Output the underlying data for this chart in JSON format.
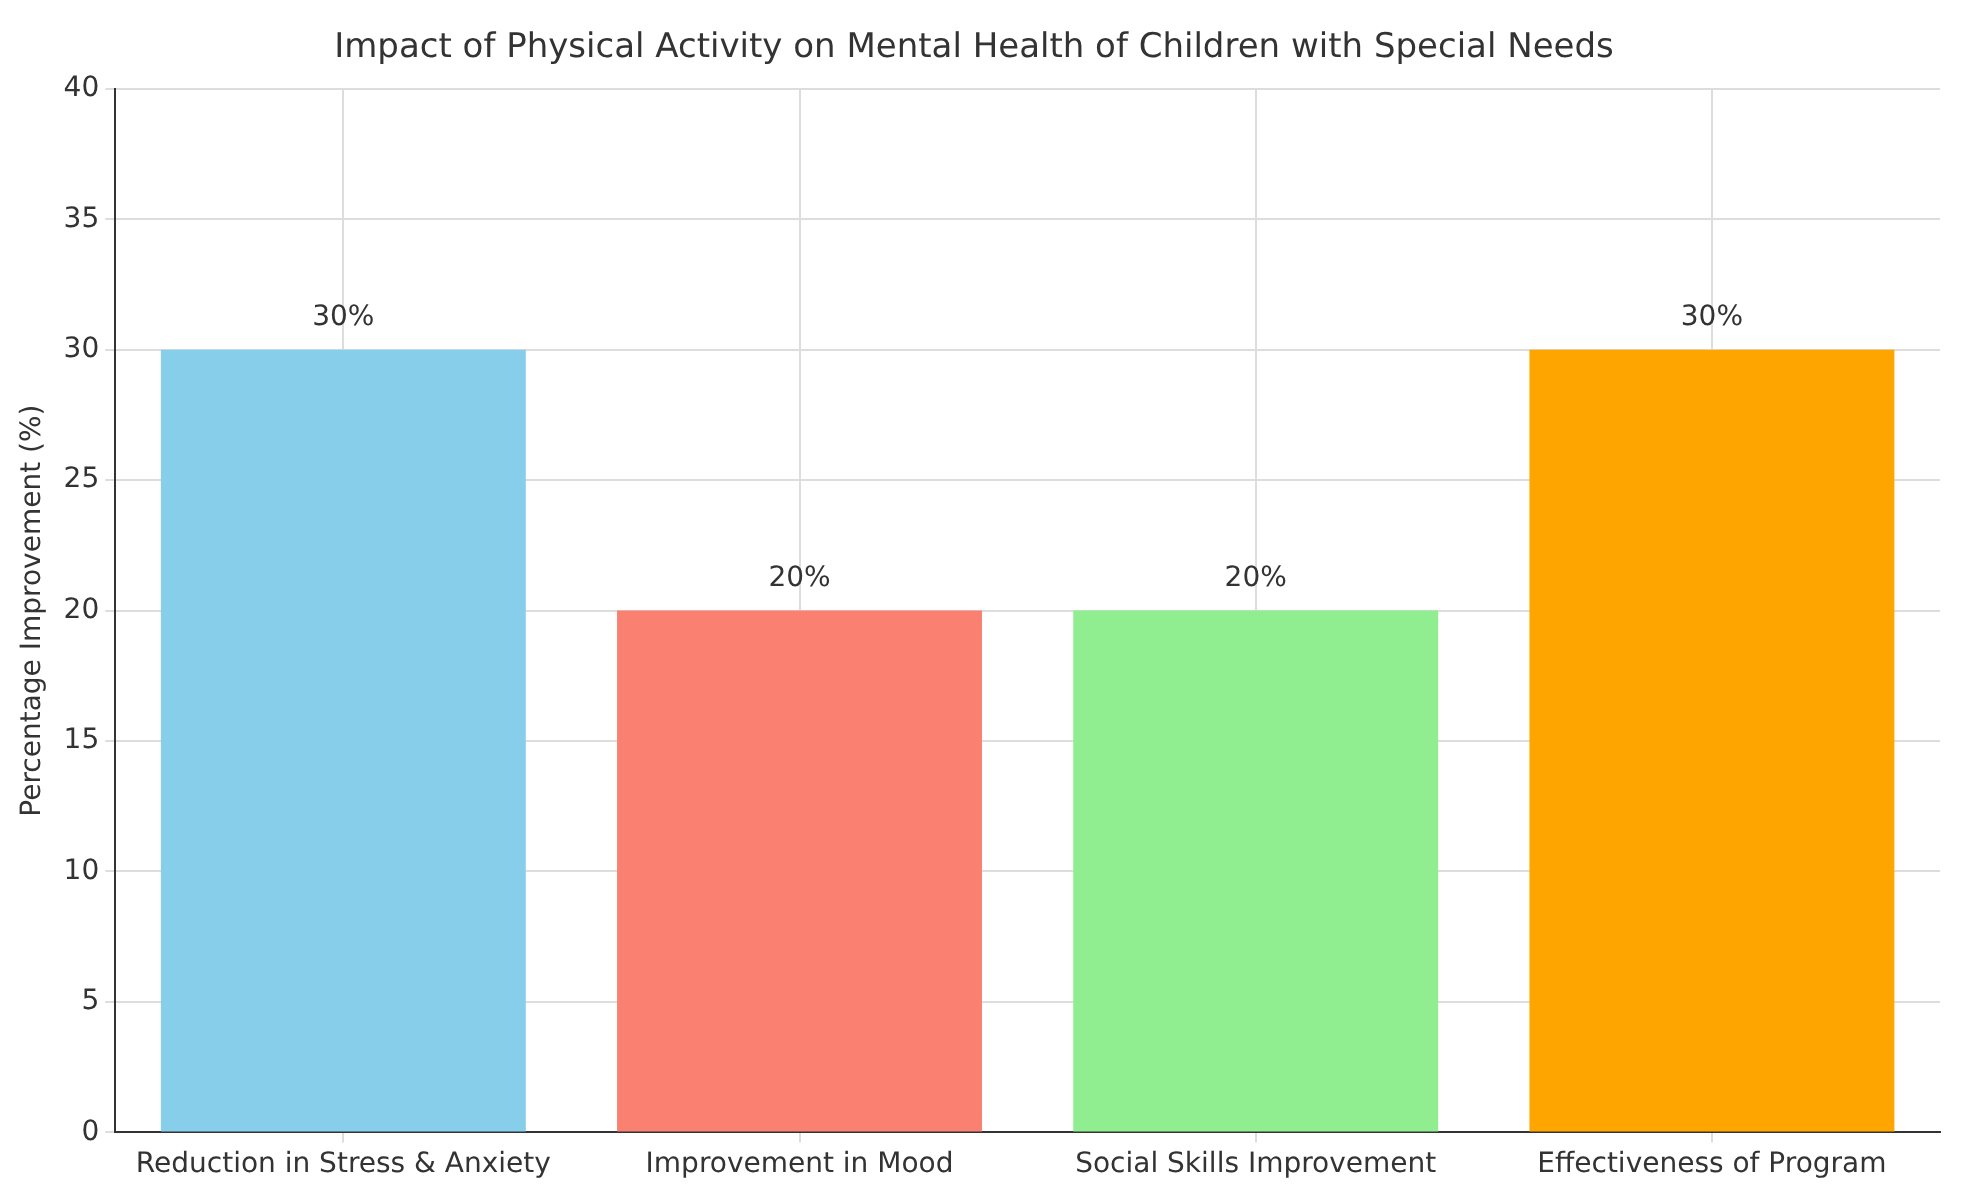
{
  "chart_data": {
    "type": "bar",
    "title": "Impact of Physical Activity on Mental Health of Children with Special Needs",
    "ylabel": "Percentage Improvement (%)",
    "categories": [
      "Reduction in Stress & Anxiety",
      "Improvement in Mood",
      "Social Skills Improvement",
      "Effectiveness of Program"
    ],
    "values": [
      30,
      20,
      20,
      30
    ],
    "colors": [
      "#87ceeb",
      "#fa8072",
      "#90ee90",
      "#ffa500"
    ],
    "value_labels": [
      "30%",
      "20%",
      "20%",
      "30%"
    ],
    "ylim": [
      0,
      40
    ],
    "yticks": [
      0,
      5,
      10,
      15,
      20,
      25,
      30,
      35,
      40
    ],
    "grid": true
  }
}
